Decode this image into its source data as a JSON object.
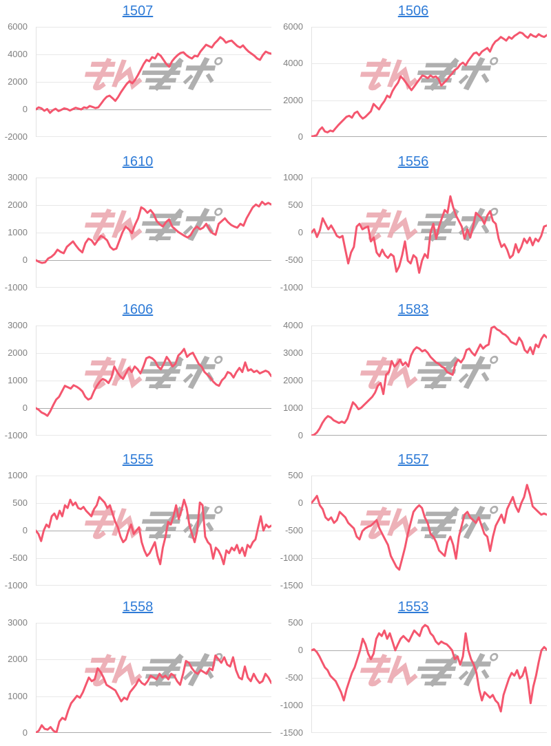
{
  "page": {
    "background": "#ffffff"
  },
  "style": {
    "line_color": "#f4566e",
    "title_color": "#2e7bd7",
    "tick_color": "#7f7f7f",
    "grid_color": "#e8e8e8",
    "zero_line_color": "#ababab",
    "axis_line_color": "#e2e2e2",
    "watermark_pink": "#eaa4ac",
    "watermark_gray": "#a9a9a9"
  },
  "watermark": {
    "pink_text": "みん",
    "gray_text": "レポ"
  },
  "chart_data": [
    {
      "title": "1507",
      "type": "line",
      "ymax": 6000,
      "ymin": -2000,
      "y_ticks": [
        6000,
        4000,
        2000,
        0,
        -2000
      ],
      "values": [
        0,
        150,
        80,
        -100,
        30,
        -250,
        -60,
        50,
        -120,
        -30,
        80,
        30,
        -80,
        20,
        120,
        60,
        0,
        150,
        100,
        250,
        180,
        100,
        150,
        420,
        700,
        920,
        1000,
        820,
        620,
        900,
        1250,
        1550,
        1850,
        2050,
        1900,
        2150,
        2500,
        2900,
        3300,
        3600,
        3500,
        3800,
        3700,
        4050,
        3900,
        3600,
        3300,
        3100,
        3500,
        3750,
        3950,
        4100,
        4150,
        3950,
        3800,
        3700,
        3900,
        3850,
        4200,
        4450,
        4700,
        4600,
        4500,
        4800,
        5000,
        5250,
        5100,
        4850,
        4950,
        5000,
        4800,
        4600,
        4500,
        4650,
        4400,
        4200,
        4050,
        3900,
        3700,
        3600,
        3950,
        4200,
        4100,
        4050
      ]
    },
    {
      "title": "1506",
      "type": "line",
      "ymax": 6000,
      "ymin": 0,
      "y_ticks": [
        6000,
        4000,
        2000,
        0
      ],
      "values": [
        30,
        50,
        100,
        380,
        520,
        300,
        250,
        350,
        300,
        480,
        650,
        800,
        950,
        1100,
        1150,
        1050,
        1300,
        1380,
        1150,
        1000,
        1100,
        1250,
        1400,
        1800,
        1650,
        1500,
        1750,
        1950,
        2250,
        2150,
        2500,
        2750,
        2950,
        3300,
        3150,
        2950,
        2750,
        2550,
        2750,
        2950,
        3150,
        3350,
        3300,
        3200,
        3350,
        3250,
        3300,
        3150,
        2800,
        2950,
        3100,
        3300,
        3450,
        3650,
        3750,
        3950,
        4050,
        3900,
        4150,
        4350,
        4550,
        4600,
        4450,
        4650,
        4750,
        4850,
        4650,
        5000,
        5200,
        5300,
        5450,
        5350,
        5250,
        5450,
        5350,
        5500,
        5600,
        5700,
        5650,
        5500,
        5400,
        5600,
        5500,
        5450,
        5600,
        5500,
        5450,
        5550
      ]
    },
    {
      "title": "1610",
      "type": "line",
      "ymax": 3000,
      "ymin": -1000,
      "y_ticks": [
        3000,
        2000,
        1000,
        0,
        -1000
      ],
      "values": [
        0,
        -60,
        -100,
        -80,
        60,
        120,
        220,
        380,
        300,
        250,
        480,
        580,
        680,
        520,
        380,
        280,
        620,
        780,
        720,
        560,
        720,
        880,
        820,
        720,
        480,
        380,
        420,
        720,
        1020,
        1220,
        1120,
        980,
        1280,
        1520,
        1920,
        1850,
        1720,
        1820,
        1680,
        1420,
        1300,
        1220,
        1380,
        1480,
        1220,
        1120,
        1020,
        950,
        880,
        820,
        920,
        1120,
        1220,
        1120,
        1180,
        1320,
        1120,
        980,
        920,
        1320,
        1420,
        1520,
        1380,
        1280,
        1220,
        1180,
        1320,
        1250,
        1520,
        1720,
        1920,
        2020,
        1950,
        2120,
        2020,
        2080,
        2020
      ]
    },
    {
      "title": "1556",
      "type": "line",
      "ymax": 1000,
      "ymin": -1000,
      "y_ticks": [
        1000,
        500,
        0,
        -500,
        -1000
      ],
      "values": [
        0,
        60,
        -80,
        40,
        260,
        160,
        60,
        130,
        40,
        -60,
        -90,
        -60,
        -310,
        -560,
        -360,
        -260,
        110,
        160,
        60,
        90,
        110,
        -160,
        -90,
        -360,
        -430,
        -310,
        -410,
        -460,
        -390,
        -430,
        -710,
        -610,
        -410,
        -160,
        -510,
        -560,
        -410,
        -460,
        -730,
        -510,
        -390,
        -460,
        0,
        160,
        -110,
        110,
        260,
        410,
        360,
        660,
        460,
        310,
        210,
        110,
        -110,
        60,
        -90,
        110,
        360,
        310,
        260,
        160,
        310,
        390,
        210,
        160,
        -110,
        -260,
        -210,
        -310,
        -460,
        -410,
        -210,
        -360,
        -260,
        -110,
        -190,
        -90,
        -230,
        -110,
        -160,
        -60,
        110,
        130
      ]
    },
    {
      "title": "1606",
      "type": "line",
      "ymax": 3000,
      "ymin": -1000,
      "y_ticks": [
        3000,
        2000,
        1000,
        0,
        -1000
      ],
      "values": [
        0,
        -60,
        -160,
        -210,
        -280,
        -110,
        110,
        310,
        410,
        610,
        810,
        760,
        710,
        830,
        780,
        710,
        610,
        410,
        310,
        360,
        610,
        810,
        960,
        1060,
        1010,
        910,
        1110,
        1510,
        1310,
        1160,
        1060,
        1260,
        1460,
        1310,
        1510,
        1410,
        1260,
        1510,
        1810,
        1860,
        1810,
        1710,
        1510,
        1410,
        1610,
        1860,
        1710,
        1510,
        1610,
        1910,
        2010,
        2150,
        1860,
        1960,
        2010,
        1810,
        1610,
        1510,
        1310,
        1210,
        1110,
        960,
        860,
        810,
        1010,
        1110,
        1310,
        1260,
        1110,
        1310,
        1460,
        1310,
        1660,
        1360,
        1410,
        1310,
        1360,
        1260,
        1310,
        1360,
        1310,
        1160
      ]
    },
    {
      "title": "1583",
      "type": "line",
      "ymax": 4000,
      "ymin": 0,
      "y_ticks": [
        4000,
        3000,
        2000,
        1000,
        0
      ],
      "values": [
        0,
        30,
        110,
        260,
        460,
        610,
        710,
        660,
        560,
        510,
        460,
        510,
        460,
        610,
        910,
        1210,
        1110,
        960,
        1010,
        1110,
        1210,
        1310,
        1410,
        1560,
        1810,
        1910,
        1510,
        2210,
        2310,
        2710,
        2510,
        2610,
        2760,
        2560,
        2660,
        2510,
        2910,
        3110,
        3210,
        3160,
        3060,
        3110,
        3010,
        2860,
        2760,
        2660,
        2610,
        2510,
        2460,
        2310,
        2260,
        2210,
        2610,
        2760,
        2660,
        2810,
        3110,
        3160,
        3010,
        2910,
        3110,
        3310,
        3160,
        3260,
        3310,
        3910,
        3960,
        3860,
        3810,
        3710,
        3660,
        3560,
        3410,
        3360,
        3310,
        3560,
        3410,
        3110,
        3010,
        3210,
        2960,
        3310,
        3210,
        3510,
        3660,
        3560
      ]
    },
    {
      "title": "1555",
      "type": "line",
      "ymax": 1000,
      "ymin": -1000,
      "y_ticks": [
        1000,
        500,
        0,
        -500,
        -1000
      ],
      "values": [
        0,
        -60,
        -190,
        0,
        110,
        60,
        260,
        310,
        210,
        360,
        260,
        460,
        410,
        560,
        460,
        510,
        410,
        390,
        430,
        360,
        310,
        260,
        390,
        460,
        610,
        560,
        510,
        410,
        460,
        310,
        160,
        60,
        -110,
        -210,
        -160,
        0,
        110,
        -60,
        0,
        60,
        -210,
        -360,
        -460,
        -410,
        -310,
        -210,
        -460,
        -610,
        -310,
        -110,
        160,
        110,
        260,
        460,
        210,
        360,
        560,
        410,
        110,
        -60,
        -210,
        0,
        510,
        460,
        -110,
        -210,
        -260,
        -510,
        -310,
        -360,
        -460,
        -610,
        -360,
        -410,
        -310,
        -360,
        -260,
        -410,
        -310,
        -460,
        -260,
        -310,
        -210,
        -160,
        60,
        260,
        0,
        110,
        60,
        90
      ]
    },
    {
      "title": "1557",
      "type": "line",
      "ymax": 500,
      "ymin": -1500,
      "y_ticks": [
        500,
        0,
        -500,
        -1000,
        -1500
      ],
      "values": [
        0,
        60,
        130,
        -40,
        -110,
        -260,
        -310,
        -260,
        -360,
        -310,
        -160,
        -210,
        -260,
        -360,
        -410,
        -460,
        -610,
        -660,
        -510,
        -460,
        -430,
        -410,
        -360,
        -310,
        -460,
        -560,
        -660,
        -760,
        -960,
        -1060,
        -1160,
        -1210,
        -1010,
        -810,
        -560,
        -360,
        -160,
        -90,
        -40,
        -90,
        -260,
        -360,
        -560,
        -610,
        -710,
        -860,
        -910,
        -960,
        -710,
        -610,
        -760,
        -1010,
        -610,
        -410,
        -210,
        -160,
        -260,
        -310,
        -360,
        -260,
        -410,
        -560,
        -610,
        -870,
        -610,
        -410,
        -310,
        -210,
        -360,
        -110,
        0,
        110,
        -60,
        -160,
        0,
        110,
        330,
        160,
        -60,
        -110,
        -160,
        -210,
        -190,
        -210
      ]
    },
    {
      "title": "1558",
      "type": "line",
      "ymax": 3000,
      "ymin": 0,
      "y_ticks": [
        3000,
        2000,
        1000,
        0
      ],
      "values": [
        0,
        60,
        210,
        110,
        90,
        160,
        60,
        10,
        310,
        410,
        360,
        610,
        810,
        910,
        1010,
        960,
        1110,
        1310,
        1510,
        1410,
        1460,
        1760,
        1660,
        1510,
        1310,
        1260,
        1210,
        1160,
        1010,
        860,
        960,
        910,
        1110,
        1210,
        1310,
        1460,
        1360,
        1310,
        1410,
        1560,
        1510,
        1460,
        1610,
        1510,
        1560,
        1460,
        1610,
        1560,
        1410,
        1310,
        1610,
        1960,
        1910,
        1760,
        1660,
        1610,
        1710,
        1660,
        1610,
        1760,
        1710,
        2110,
        2010,
        1910,
        2060,
        1860,
        1810,
        2060,
        1710,
        1510,
        1460,
        1810,
        1510,
        1410,
        1610,
        1460,
        1360,
        1410,
        1610,
        1510,
        1360
      ]
    },
    {
      "title": "1553",
      "type": "line",
      "ymax": 500,
      "ymin": -1500,
      "y_ticks": [
        500,
        0,
        -500,
        -1000,
        -1500
      ],
      "values": [
        0,
        20,
        -30,
        -110,
        -210,
        -310,
        -360,
        -460,
        -510,
        -560,
        -660,
        -760,
        -910,
        -710,
        -560,
        -410,
        -310,
        -160,
        0,
        210,
        110,
        -60,
        -160,
        -60,
        210,
        310,
        260,
        360,
        210,
        310,
        160,
        0,
        110,
        210,
        260,
        210,
        160,
        260,
        360,
        310,
        260,
        410,
        460,
        430,
        310,
        260,
        160,
        110,
        160,
        130,
        110,
        60,
        0,
        -160,
        -110,
        -260,
        -110,
        310,
        0,
        -160,
        -260,
        -410,
        -710,
        -910,
        -760,
        -810,
        -860,
        -810,
        -910,
        -960,
        -1110,
        -810,
        -660,
        -510,
        -410,
        -460,
        -360,
        -510,
        -460,
        -310,
        -560,
        -960,
        -660,
        -460,
        -210,
        0,
        60,
        10
      ]
    }
  ]
}
